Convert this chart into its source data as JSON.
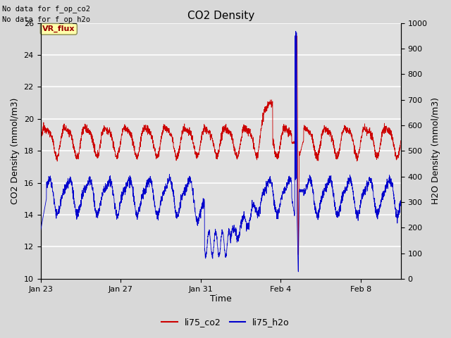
{
  "title": "CO2 Density",
  "xlabel": "Time",
  "ylabel_left": "CO2 Density (mmol/m3)",
  "ylabel_right": "H2O Density (mmol/m3)",
  "ylim_left": [
    10,
    26
  ],
  "ylim_right": [
    0,
    1000
  ],
  "yticks_left": [
    10,
    12,
    14,
    16,
    18,
    20,
    22,
    24,
    26
  ],
  "yticks_right": [
    0,
    100,
    200,
    300,
    400,
    500,
    600,
    700,
    800,
    900,
    1000
  ],
  "bg_color": "#d8d8d8",
  "plot_bg_color": "#e0e0e0",
  "grid_color": "#f0f0f0",
  "co2_color": "#cc0000",
  "h2o_color": "#0000cc",
  "no_data_text1": "No data for f_op_co2",
  "no_data_text2": "No data for f_op_h2o",
  "vr_flux_label": "VR_flux",
  "legend_co2": "li75_co2",
  "legend_h2o": "li75_h2o",
  "x_tick_labels": [
    "Jan 23",
    "Jan 27",
    "Jan 31",
    "Feb 4",
    "Feb 8"
  ],
  "x_tick_positions": [
    0,
    4,
    8,
    12,
    16
  ],
  "xlim": [
    0,
    18
  ]
}
